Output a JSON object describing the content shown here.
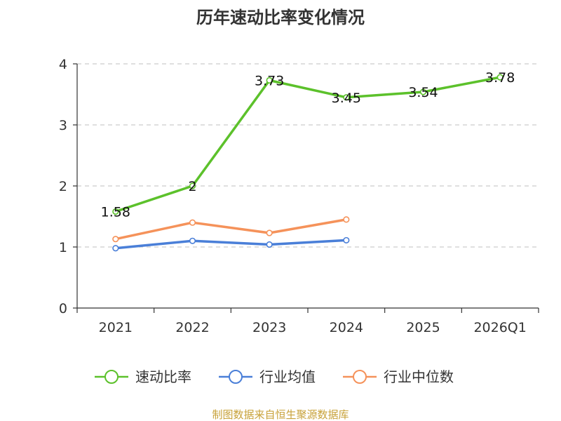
{
  "chart_data": {
    "type": "line",
    "title": "历年速动比率变化情况",
    "categories": [
      "2021",
      "2022",
      "2023",
      "2024",
      "2025",
      "2026Q1"
    ],
    "y_ticks": [
      "0",
      "1",
      "2",
      "3",
      "4"
    ],
    "ylim": [
      0,
      4
    ],
    "grid": true,
    "legend_position": "bottom",
    "series": [
      {
        "name": "速动比率",
        "color": "#5cc12b",
        "values": [
          1.58,
          2,
          3.73,
          3.45,
          3.54,
          3.78
        ],
        "labels": [
          "1.58",
          "2",
          "3.73",
          "3.45",
          "3.54",
          "3.78"
        ]
      },
      {
        "name": "行业均值",
        "color": "#4a7fd8",
        "values": [
          0.98,
          1.1,
          1.04,
          1.11,
          null,
          null
        ]
      },
      {
        "name": "行业中位数",
        "color": "#f5925a",
        "values": [
          1.13,
          1.4,
          1.23,
          1.45,
          null,
          null
        ]
      }
    ],
    "source": "制图数据来自恒生聚源数据库"
  }
}
